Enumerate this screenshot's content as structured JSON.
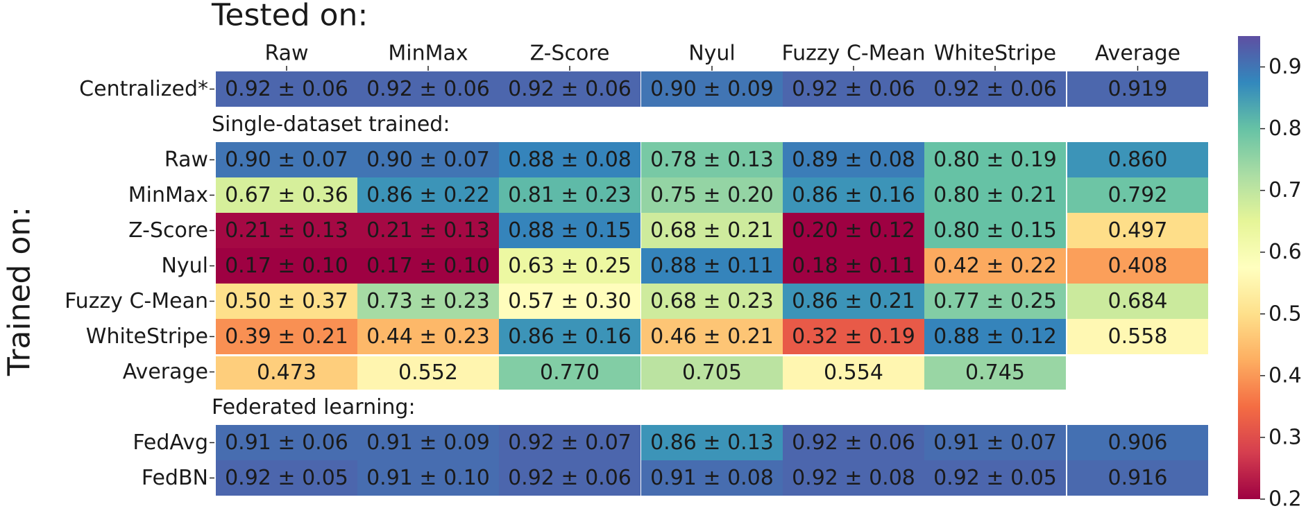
{
  "chart_data": {
    "type": "heatmap",
    "title": "Tested on:",
    "ylabel": "Trained on:",
    "columns": [
      "Raw",
      "MinMax",
      "Z-Score",
      "Nyul",
      "Fuzzy C-Mean",
      "WhiteStripe",
      "Average"
    ],
    "groups": [
      {
        "heading": "",
        "rows": [
          {
            "label": "Centralized*",
            "means": [
              0.92,
              0.92,
              0.92,
              0.9,
              0.92,
              0.92
            ],
            "stds": [
              0.06,
              0.06,
              0.06,
              0.09,
              0.06,
              0.06
            ],
            "average": 0.919
          }
        ]
      },
      {
        "heading": "Single-dataset trained:",
        "rows": [
          {
            "label": "Raw",
            "means": [
              0.9,
              0.9,
              0.88,
              0.78,
              0.89,
              0.8
            ],
            "stds": [
              0.07,
              0.07,
              0.08,
              0.13,
              0.08,
              0.19
            ],
            "average": 0.86
          },
          {
            "label": "MinMax",
            "means": [
              0.67,
              0.86,
              0.81,
              0.75,
              0.86,
              0.8
            ],
            "stds": [
              0.36,
              0.22,
              0.23,
              0.2,
              0.16,
              0.21
            ],
            "average": 0.792
          },
          {
            "label": "Z-Score",
            "means": [
              0.21,
              0.21,
              0.88,
              0.68,
              0.2,
              0.8
            ],
            "stds": [
              0.13,
              0.13,
              0.15,
              0.21,
              0.12,
              0.15
            ],
            "average": 0.497
          },
          {
            "label": "Nyul",
            "means": [
              0.17,
              0.17,
              0.63,
              0.88,
              0.18,
              0.42
            ],
            "stds": [
              0.1,
              0.1,
              0.25,
              0.11,
              0.11,
              0.22
            ],
            "average": 0.408
          },
          {
            "label": "Fuzzy C-Mean",
            "means": [
              0.5,
              0.73,
              0.57,
              0.68,
              0.86,
              0.77
            ],
            "stds": [
              0.37,
              0.23,
              0.3,
              0.23,
              0.21,
              0.25
            ],
            "average": 0.684
          },
          {
            "label": "WhiteStripe",
            "means": [
              0.39,
              0.44,
              0.86,
              0.46,
              0.32,
              0.88
            ],
            "stds": [
              0.21,
              0.23,
              0.16,
              0.21,
              0.19,
              0.12
            ],
            "average": 0.558
          }
        ],
        "average_row": {
          "label": "Average",
          "values": [
            0.473,
            0.552,
            0.77,
            0.705,
            0.554,
            0.745
          ]
        }
      },
      {
        "heading": "Federated learning:",
        "rows": [
          {
            "label": "FedAvg",
            "means": [
              0.91,
              0.91,
              0.92,
              0.86,
              0.92,
              0.91
            ],
            "stds": [
              0.06,
              0.09,
              0.07,
              0.13,
              0.06,
              0.07
            ],
            "average": 0.906
          },
          {
            "label": "FedBN",
            "means": [
              0.92,
              0.91,
              0.92,
              0.91,
              0.92,
              0.92
            ],
            "stds": [
              0.05,
              0.1,
              0.06,
              0.08,
              0.08,
              0.05
            ],
            "average": 0.916
          }
        ]
      }
    ],
    "colorbar": {
      "colormap": "Spectral",
      "min": 0.2,
      "max": 0.95,
      "ticks": [
        0.2,
        0.3,
        0.4,
        0.5,
        0.6,
        0.7,
        0.8,
        0.9
      ]
    }
  }
}
